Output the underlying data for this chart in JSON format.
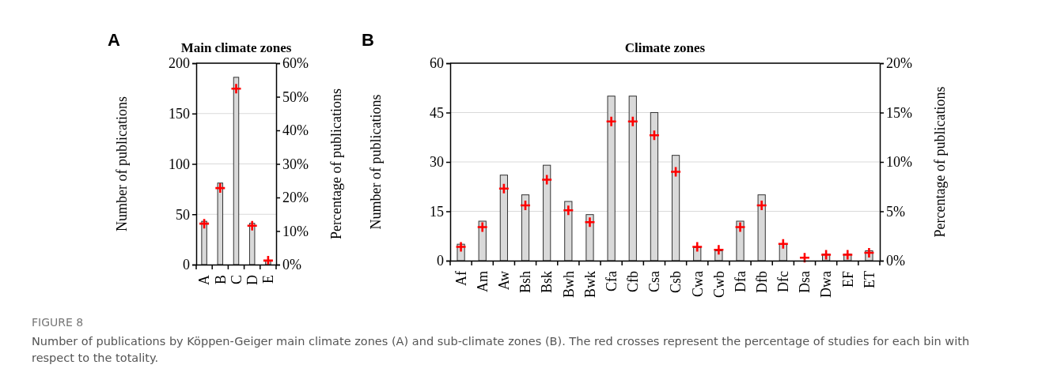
{
  "chart_data": [
    {
      "type": "bar",
      "title": "Main climate zones",
      "ylabel": "Number of publications",
      "y2label": "Percentage of publications",
      "annotations": [
        "A",
        "FIGURE 8",
        "Number of publications by Köppen-Geiger main climate zones (A) and sub-climate zones (B). The red crosses represent the percentage of studies for each bin with respect to the totality."
      ],
      "categories": [
        "A",
        "B",
        "C",
        "D",
        "E"
      ],
      "series": [
        {
          "color": "#d9d9d9",
          "values": [
            43,
            81,
            186,
            41,
            4
          ]
        },
        {
          "type": "scatter",
          "axis": "y2",
          "color": "#ff0000",
          "values": [
            12.2,
            22.8,
            52.4,
            11.6,
            1.2
          ]
        }
      ],
      "ylim": [
        0,
        200
      ],
      "yticks": [
        0,
        50,
        100,
        150,
        200
      ],
      "y2lim": [
        0,
        60
      ],
      "y2ticks": [
        {
          "value": 0,
          "label": "0%"
        },
        {
          "value": 10,
          "label": "10%"
        },
        {
          "value": 20,
          "label": "20%"
        },
        {
          "value": 30,
          "label": "30%"
        },
        {
          "value": 40,
          "label": "40%"
        },
        {
          "value": 50,
          "label": "50%"
        },
        {
          "value": 60,
          "label": "60%"
        }
      ],
      "grid": "y",
      "marker": "cross"
    },
    {
      "type": "bar",
      "title": "Climate zones",
      "ylabel": "Number of publications",
      "y2label": "Percentage of publications",
      "annotations": [
        "B"
      ],
      "categories": [
        "Af",
        "Am",
        "Aw",
        "Bsh",
        "Bsk",
        "Bwh",
        "Bwk",
        "Cfa",
        "Cfb",
        "Csa",
        "Csb",
        "Cwa",
        "Cwb",
        "Dfa",
        "Dfb",
        "Dfc",
        "Dsa",
        "Dwa",
        "EF",
        "ET"
      ],
      "series": [
        {
          "color": "#d9d9d9",
          "values": [
            5,
            12,
            26,
            20,
            29,
            18,
            14,
            50,
            50,
            45,
            32,
            4,
            3,
            12,
            20,
            5,
            null,
            2,
            2,
            3
          ]
        },
        {
          "type": "scatter",
          "axis": "y2",
          "color": "#ff0000",
          "values": [
            1.4,
            3.4,
            7.3,
            5.6,
            8.2,
            5.1,
            3.9,
            14.1,
            14.1,
            12.7,
            9.0,
            1.4,
            1.1,
            3.4,
            5.6,
            1.7,
            0.3,
            0.6,
            0.6,
            0.8
          ]
        }
      ],
      "ylim": [
        0,
        60
      ],
      "yticks": [
        0,
        15,
        30,
        45,
        60
      ],
      "y2lim": [
        0,
        20
      ],
      "y2ticks": [
        {
          "value": 0,
          "label": "0%"
        },
        {
          "value": 5,
          "label": "5%"
        },
        {
          "value": 10,
          "label": "10%"
        },
        {
          "value": 15,
          "label": "15%"
        },
        {
          "value": 20,
          "label": "20%"
        }
      ],
      "grid": "y",
      "marker": "cross"
    }
  ]
}
